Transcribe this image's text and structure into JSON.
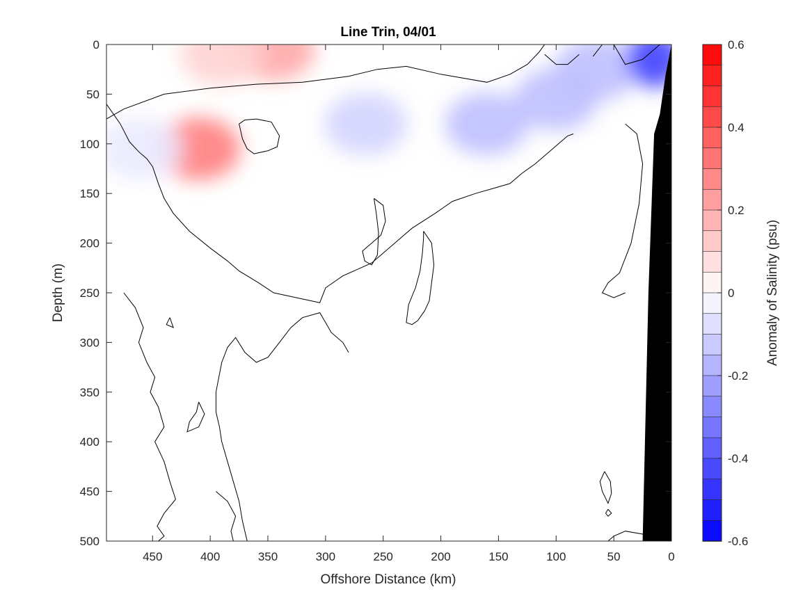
{
  "chart_data": {
    "type": "heatmap",
    "title": "Line Trin, 04/01",
    "xlabel": "Offshore Distance (km)",
    "ylabel": "Depth (m)",
    "colorbar_label": "Anomaly of Salinity (psu)",
    "xlim": [
      490,
      0
    ],
    "ylim": [
      0,
      500
    ],
    "y_reversed": true,
    "x_reversed": true,
    "xticks": [
      450,
      400,
      350,
      300,
      250,
      200,
      150,
      100,
      50,
      0
    ],
    "xtick_labels": [
      "450",
      "400",
      "350",
      "300",
      "250",
      "200",
      "150",
      "100",
      "50",
      "0"
    ],
    "yticks": [
      0,
      50,
      100,
      150,
      200,
      250,
      300,
      350,
      400,
      450,
      500
    ],
    "ytick_labels": [
      "0",
      "50",
      "100",
      "150",
      "200",
      "250",
      "300",
      "350",
      "400",
      "450",
      "500"
    ],
    "clim": [
      -0.6,
      0.6
    ],
    "colorbar_ticks": [
      0.6,
      0.4,
      0.2,
      0,
      -0.2,
      -0.4,
      -0.6
    ],
    "colorbar_tick_labels": [
      "0.6",
      "0.4",
      "0.2",
      "0",
      "-0.2",
      "-0.4",
      "-0.6"
    ],
    "colorbar_levels": 24,
    "colormap": "blue-white-red",
    "colors": {
      "positive_max": "#ff0000",
      "negative_max": "#0000ff",
      "zero": "#ffffff",
      "bathymetry": "#000000",
      "contour": "#000000"
    },
    "anomaly_features": [
      {
        "x": 345,
        "depth": 5,
        "value": 0.2
      },
      {
        "x": 390,
        "depth": 10,
        "value": 0.1
      },
      {
        "x": 410,
        "depth": 105,
        "value": 0.3
      },
      {
        "x": 460,
        "depth": 105,
        "value": -0.05
      },
      {
        "x": 265,
        "depth": 80,
        "value": -0.1
      },
      {
        "x": 160,
        "depth": 80,
        "value": -0.15
      },
      {
        "x": 100,
        "depth": 55,
        "value": -0.15
      },
      {
        "x": 65,
        "depth": 25,
        "value": -0.15
      },
      {
        "x": 15,
        "depth": 15,
        "value": -0.45
      }
    ],
    "zero_contours": [
      [
        [
          490,
          75
        ],
        [
          475,
          65
        ],
        [
          440,
          50
        ],
        [
          400,
          44
        ],
        [
          360,
          40
        ],
        [
          320,
          38
        ],
        [
          300,
          35
        ],
        [
          280,
          32
        ],
        [
          255,
          25
        ],
        [
          230,
          22
        ],
        [
          200,
          30
        ],
        [
          160,
          38
        ],
        [
          140,
          30
        ],
        [
          125,
          20
        ],
        [
          115,
          8
        ],
        [
          110,
          0
        ]
      ],
      [
        [
          110,
          10
        ],
        [
          100,
          20
        ],
        [
          90,
          20
        ],
        [
          80,
          10
        ]
      ],
      [
        [
          68,
          12
        ],
        [
          60,
          0
        ]
      ],
      [
        [
          50,
          0
        ],
        [
          45,
          10
        ],
        [
          40,
          20
        ],
        [
          25,
          15
        ],
        [
          10,
          0
        ]
      ],
      [
        [
          490,
          60
        ],
        [
          478,
          80
        ],
        [
          470,
          98
        ],
        [
          462,
          108
        ],
        [
          455,
          115
        ],
        [
          450,
          123
        ],
        [
          445,
          140
        ],
        [
          440,
          155
        ],
        [
          432,
          170
        ],
        [
          418,
          188
        ],
        [
          400,
          205
        ],
        [
          385,
          218
        ],
        [
          375,
          228
        ],
        [
          358,
          240
        ],
        [
          345,
          250
        ],
        [
          325,
          255
        ],
        [
          305,
          260
        ],
        [
          300,
          245
        ],
        [
          285,
          233
        ],
        [
          260,
          220
        ],
        [
          240,
          200
        ],
        [
          225,
          185
        ],
        [
          205,
          170
        ],
        [
          190,
          158
        ],
        [
          170,
          150
        ],
        [
          155,
          145
        ],
        [
          140,
          140
        ],
        [
          130,
          130
        ],
        [
          118,
          120
        ],
        [
          108,
          110
        ],
        [
          98,
          100
        ],
        [
          90,
          92
        ],
        [
          85,
          90
        ]
      ],
      [
        [
          375,
          80
        ],
        [
          372,
          95
        ],
        [
          368,
          105
        ],
        [
          362,
          110
        ],
        [
          350,
          107
        ],
        [
          342,
          103
        ],
        [
          340,
          92
        ],
        [
          347,
          78
        ],
        [
          360,
          75
        ],
        [
          370,
          76
        ],
        [
          375,
          80
        ]
      ],
      [
        [
          258,
          155
        ],
        [
          250,
          162
        ],
        [
          248,
          178
        ],
        [
          252,
          192
        ],
        [
          260,
          200
        ],
        [
          268,
          208
        ],
        [
          266,
          218
        ],
        [
          260,
          222
        ],
        [
          255,
          212
        ],
        [
          254,
          190
        ],
        [
          256,
          170
        ],
        [
          258,
          155
        ]
      ],
      [
        [
          215,
          188
        ],
        [
          208,
          200
        ],
        [
          206,
          222
        ],
        [
          208,
          240
        ],
        [
          210,
          258
        ],
        [
          214,
          268
        ],
        [
          220,
          278
        ],
        [
          225,
          282
        ],
        [
          230,
          280
        ],
        [
          228,
          262
        ],
        [
          222,
          245
        ],
        [
          218,
          228
        ],
        [
          216,
          210
        ],
        [
          215,
          195
        ],
        [
          215,
          188
        ]
      ],
      [
        [
          40,
          80
        ],
        [
          30,
          90
        ],
        [
          25,
          120
        ],
        [
          28,
          160
        ],
        [
          35,
          200
        ],
        [
          45,
          230
        ],
        [
          55,
          240
        ],
        [
          60,
          250
        ],
        [
          50,
          255
        ],
        [
          40,
          250
        ]
      ],
      [
        [
          475,
          250
        ],
        [
          465,
          265
        ],
        [
          458,
          285
        ],
        [
          462,
          300
        ],
        [
          455,
          320
        ],
        [
          448,
          335
        ],
        [
          452,
          350
        ],
        [
          445,
          365
        ],
        [
          440,
          385
        ],
        [
          448,
          400
        ],
        [
          440,
          420
        ],
        [
          435,
          440
        ],
        [
          430,
          458
        ],
        [
          440,
          472
        ],
        [
          446,
          485
        ],
        [
          440,
          495
        ],
        [
          445,
          500
        ]
      ],
      [
        [
          435,
          275
        ],
        [
          438,
          282
        ],
        [
          432,
          285
        ],
        [
          435,
          275
        ]
      ],
      [
        [
          410,
          360
        ],
        [
          405,
          372
        ],
        [
          410,
          385
        ],
        [
          420,
          390
        ],
        [
          418,
          380
        ],
        [
          412,
          370
        ],
        [
          410,
          360
        ]
      ],
      [
        [
          395,
          450
        ],
        [
          385,
          460
        ],
        [
          378,
          475
        ],
        [
          382,
          490
        ],
        [
          380,
          500
        ]
      ],
      [
        [
          368,
          500
        ],
        [
          372,
          480
        ],
        [
          375,
          460
        ],
        [
          380,
          440
        ],
        [
          385,
          420
        ],
        [
          390,
          400
        ],
        [
          392,
          385
        ],
        [
          395,
          370
        ],
        [
          395,
          350
        ],
        [
          390,
          320
        ],
        [
          385,
          305
        ],
        [
          378,
          295
        ],
        [
          370,
          310
        ],
        [
          360,
          320
        ],
        [
          350,
          315
        ],
        [
          340,
          300
        ],
        [
          330,
          285
        ],
        [
          320,
          275
        ],
        [
          305,
          270
        ],
        [
          300,
          280
        ],
        [
          295,
          290
        ],
        [
          285,
          300
        ],
        [
          280,
          310
        ]
      ],
      [
        [
          58,
          430
        ],
        [
          53,
          440
        ],
        [
          52,
          452
        ],
        [
          55,
          462
        ],
        [
          60,
          450
        ],
        [
          62,
          440
        ],
        [
          58,
          430
        ]
      ],
      [
        [
          55,
          468
        ],
        [
          52,
          472
        ],
        [
          55,
          475
        ],
        [
          57,
          472
        ],
        [
          55,
          468
        ]
      ],
      [
        [
          55,
          500
        ],
        [
          50,
          495
        ],
        [
          40,
          490
        ],
        [
          25,
          493
        ],
        [
          20,
          500
        ]
      ]
    ],
    "bathymetry": [
      [
        0,
        0
      ],
      [
        5,
        30
      ],
      [
        10,
        70
      ],
      [
        15,
        90
      ],
      [
        20,
        250
      ],
      [
        25,
        500
      ],
      [
        0,
        500
      ]
    ]
  }
}
